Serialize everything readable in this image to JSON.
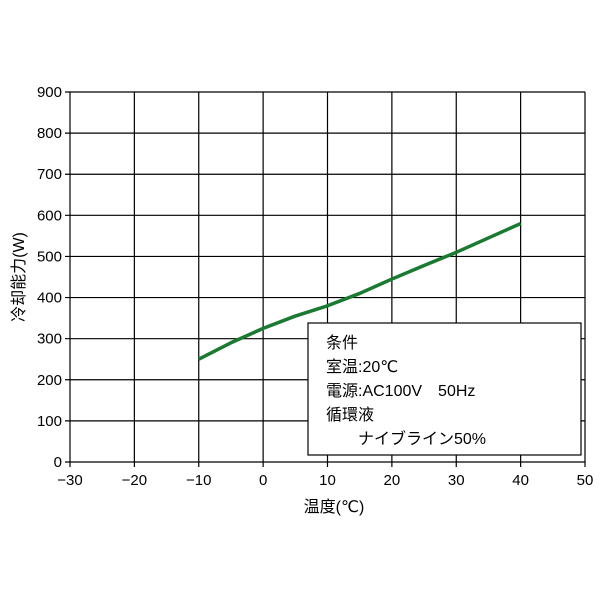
{
  "chart_data": {
    "type": "line",
    "title": "",
    "xlabel": "温度(℃)",
    "ylabel": "冷却能力(W)",
    "xlim": [
      -30,
      50
    ],
    "ylim": [
      0,
      900
    ],
    "xticks": [
      -30,
      -20,
      -10,
      0,
      10,
      20,
      30,
      40,
      50
    ],
    "yticks": [
      0,
      100,
      200,
      300,
      400,
      500,
      600,
      700,
      800,
      900
    ],
    "grid": true,
    "series": [
      {
        "color": "#1a7a32",
        "x": [
          -10,
          -5,
          0,
          5,
          10,
          15,
          20,
          25,
          30,
          35,
          40
        ],
        "y": [
          250,
          290,
          325,
          355,
          380,
          410,
          445,
          478,
          510,
          545,
          580
        ]
      }
    ],
    "annotation": {
      "lines": [
        "条件",
        "室温:20℃",
        "電源:AC100V　50Hz",
        "循環液",
        "　　ナイブライン50%"
      ],
      "placement": "bottom-right"
    }
  }
}
